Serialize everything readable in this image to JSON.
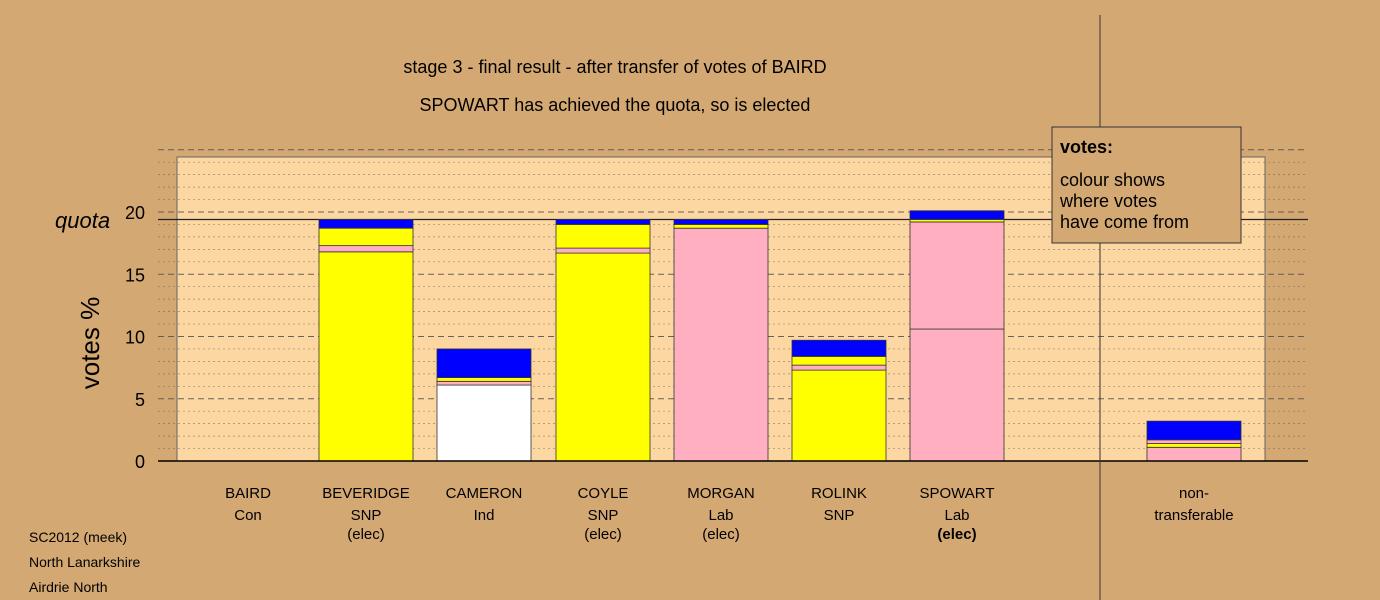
{
  "chart_data": {
    "type": "bar",
    "stacked": true,
    "title": "stage 3 - final result - after transfer of votes of BAIRD",
    "subtitle": "SPOWART has achieved the quota, so is elected",
    "ylabel": "votes %",
    "ylim": [
      0,
      25
    ],
    "yticks": [
      0,
      5,
      10,
      15,
      20
    ],
    "quota": 19.4,
    "quota_label": "quota",
    "grid": true,
    "colors": {
      "background": "#d4a873",
      "plot": "#fdd7a2",
      "SNP": "#ffff00",
      "Lab": "#ffafc0",
      "Ind": "#ffffff",
      "Con": "#0000ff"
    },
    "categories": [
      {
        "name": "BAIRD",
        "party": "Con",
        "status": ""
      },
      {
        "name": "BEVERIDGE",
        "party": "SNP",
        "status": "(elec)"
      },
      {
        "name": "CAMERON",
        "party": "Ind",
        "status": ""
      },
      {
        "name": "COYLE",
        "party": "SNP",
        "status": "(elec)"
      },
      {
        "name": "MORGAN",
        "party": "Lab",
        "status": "(elec)"
      },
      {
        "name": "ROLINK",
        "party": "SNP",
        "status": ""
      },
      {
        "name": "SPOWART",
        "party": "Lab",
        "status": "(elec)"
      }
    ],
    "bars": [
      [],
      [
        {
          "value": 16.8,
          "color": "#ffff00"
        },
        {
          "value": 0.5,
          "color": "#ffafc0"
        },
        {
          "value": 1.4,
          "color": "#ffff00"
        },
        {
          "value": 0.7,
          "color": "#0000ff"
        }
      ],
      [
        {
          "value": 6.1,
          "color": "#ffffff"
        },
        {
          "value": 0.3,
          "color": "#ffafc0"
        },
        {
          "value": 0.3,
          "color": "#ffff00"
        },
        {
          "value": 2.3,
          "color": "#0000ff"
        }
      ],
      [
        {
          "value": 16.7,
          "color": "#ffff00"
        },
        {
          "value": 0.4,
          "color": "#ffafc0"
        },
        {
          "value": 1.9,
          "color": "#ffff00"
        },
        {
          "value": 0.4,
          "color": "#0000ff"
        }
      ],
      [
        {
          "value": 18.7,
          "color": "#ffafc0"
        },
        {
          "value": 0.3,
          "color": "#ffff00"
        },
        {
          "value": 0.4,
          "color": "#0000ff"
        }
      ],
      [
        {
          "value": 7.3,
          "color": "#ffff00"
        },
        {
          "value": 0.4,
          "color": "#ffafc0"
        },
        {
          "value": 0.7,
          "color": "#ffff00"
        },
        {
          "value": 1.3,
          "color": "#0000ff"
        }
      ],
      [
        {
          "value": 10.6,
          "color": "#ffafc0"
        },
        {
          "value": 8.6,
          "color": "#ffafc0"
        },
        {
          "value": 0.2,
          "color": "#ffff00"
        },
        {
          "value": 0.7,
          "color": "#0000ff"
        }
      ]
    ],
    "nontransferable": {
      "label_line1": "non-",
      "label_line2": "transferable",
      "segments": [
        {
          "value": 1.1,
          "color": "#ffafc0"
        },
        {
          "value": 0.3,
          "color": "#ffff00"
        },
        {
          "value": 0.3,
          "color": "#ffafc0"
        },
        {
          "value": 1.5,
          "color": "#0000ff"
        }
      ]
    },
    "legend": {
      "title": "votes:",
      "lines": [
        "colour shows",
        "where votes",
        "have come from"
      ],
      "position": "top-right"
    }
  },
  "footer": {
    "lines": [
      "SC2012 (meek)",
      "North Lanarkshire",
      "Airdrie North"
    ]
  }
}
